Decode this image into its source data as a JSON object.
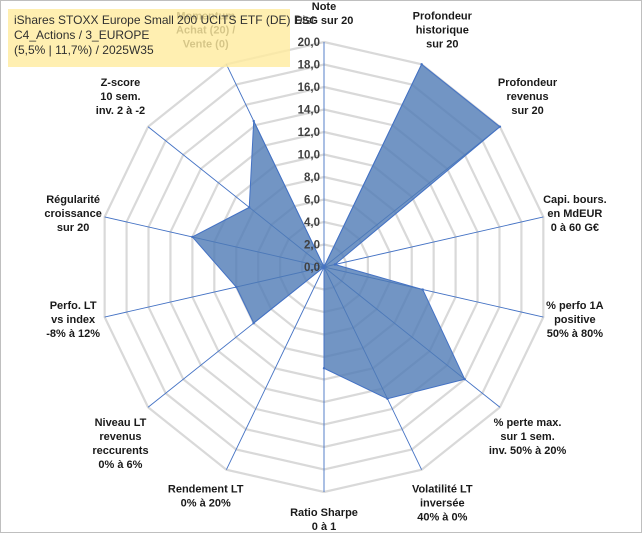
{
  "chart_data": {
    "type": "radar",
    "title_lines": [
      "iShares STOXX Europe Small 200 UCITS ETF (DE) Dist",
      "C4_Actions / 3_EUROPE",
      "(5,5% | 11,7%) / 2025W35"
    ],
    "scale": {
      "min": 0,
      "max": 20,
      "step": 2
    },
    "tick_labels": [
      "0,0",
      "2,0",
      "4,0",
      "6,0",
      "8,0",
      "10,0",
      "12,0",
      "14,0",
      "16,0",
      "18,0",
      "20,0"
    ],
    "grid": true,
    "categories": [
      "Note ESG sur 20",
      "Profondeur historique sur 20",
      "Profondeur revenus sur 20",
      "Capi. bours. en MdEUR 0 à 60 G€",
      "% perfo 1A positive 50% à 80%",
      "% perte max. sur 1 sem. inv. 50% à 20%",
      "Volatilité LT inversée 40% à 0%",
      "Ratio Sharpe 0 à 1",
      "Rendement LT 0% à 20%",
      "Niveau LT revenus reccurents 0% à 6%",
      "Perfo. LT vs index -8% à 12%",
      "Régularité croissance sur 20",
      "Z-score 10 sem. inv. 2 à -2",
      "Momentum Achat (20) / Vente (0)"
    ],
    "axis_label_lines": [
      [
        "Note",
        "ESG sur 20"
      ],
      [
        "Profondeur",
        "historique",
        "sur 20"
      ],
      [
        "Profondeur",
        "revenus",
        "sur 20"
      ],
      [
        "Capi. bours.",
        "en MdEUR",
        "0 à 60 G€"
      ],
      [
        "% perfo 1A",
        "positive",
        "50% à 80%"
      ],
      [
        "% perte max.",
        "sur 1 sem.",
        "inv. 50% à 20%"
      ],
      [
        "Volatilité LT",
        "inversée",
        "40% à 0%"
      ],
      [
        "Ratio Sharpe",
        "0 à 1"
      ],
      [
        "Rendement LT",
        "0% à 20%"
      ],
      [
        "Niveau LT",
        "revenus",
        "reccurents",
        "0% à 6%"
      ],
      [
        "Perfo. LT",
        "vs index",
        "-8% à 12%"
      ],
      [
        "Régularité",
        "croissance",
        "sur 20"
      ],
      [
        "Z-score",
        "10 sem.",
        "inv. 2 à -2"
      ],
      [
        "Momentum",
        "Achat (20) /",
        "Vente (0)"
      ]
    ],
    "series": [
      {
        "values": [
          0,
          20,
          20,
          1,
          9,
          16,
          13,
          9,
          0,
          8,
          8,
          12,
          8.5,
          14.4
        ]
      }
    ],
    "colors": {
      "fill": "#4f7bb5",
      "fill_opacity": 0.8,
      "stroke": "#4472c4",
      "grid": "#d9d9d9",
      "spoke": "#4472c4",
      "title_bg": "#ffeca0"
    }
  }
}
